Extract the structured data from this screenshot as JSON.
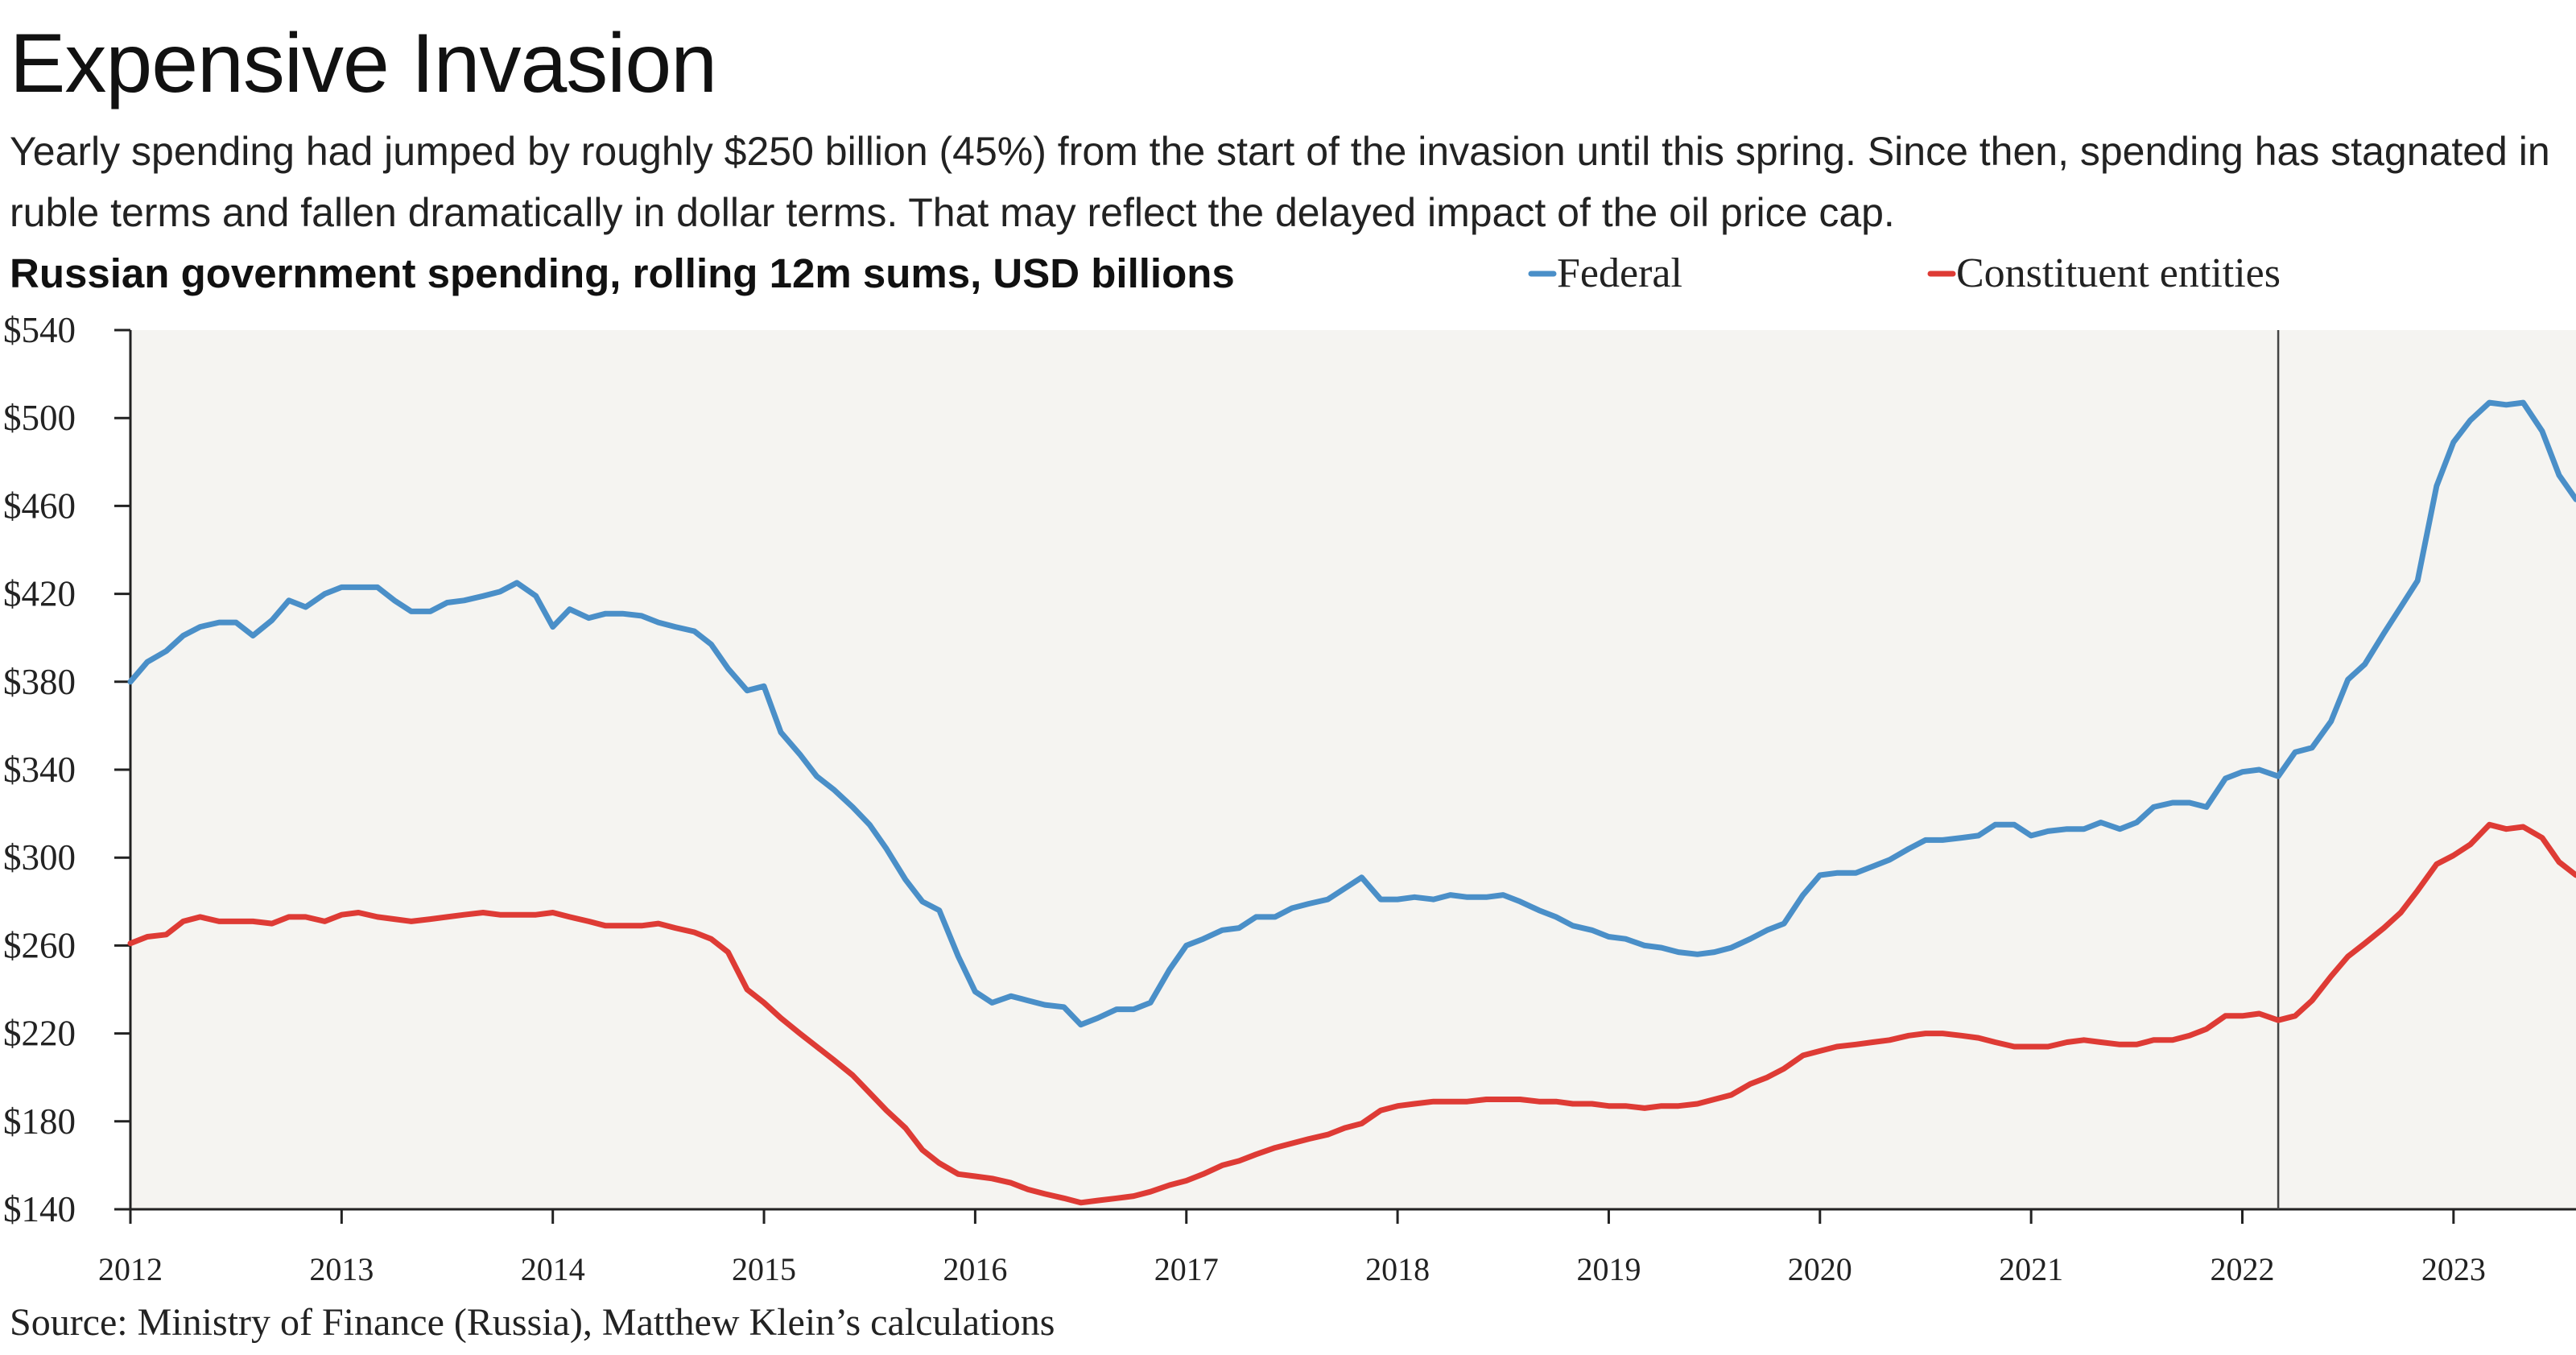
{
  "header": {
    "title": "Expensive Invasion",
    "subtitle": "Yearly spending had jumped by roughly $250 billion (45%) from the start of the invasion until this spring. Since then, spending has stagnated in ruble terms and fallen dramatically in dollar terms. That may reflect the delayed impact of the oil price cap.",
    "chart_title": "Russian government spending, rolling 12m sums, USD billions"
  },
  "footer": {
    "source": "Source: Ministry of Finance (Russia), Matthew Klein’s calculations"
  },
  "colors": {
    "federal": "#4a8fc8",
    "constituent": "#de3b35",
    "plot_background": "#f5f4f1",
    "marker_line": "#444444"
  },
  "chart_data": {
    "type": "line",
    "title": "Russian government spending, rolling 12m sums, USD billions",
    "xlabel": "",
    "ylabel": "",
    "xlim": [
      2012.0,
      2023.58
    ],
    "ylim": [
      140,
      540
    ],
    "y_ticks": [
      140,
      180,
      220,
      260,
      300,
      340,
      380,
      420,
      460,
      500,
      540
    ],
    "y_tick_labels": [
      "$140",
      "$180",
      "$220",
      "$260",
      "$300",
      "$340",
      "$380",
      "$420",
      "$460",
      "$500",
      "$540"
    ],
    "x_ticks": [
      2012,
      2013,
      2014,
      2015,
      2016,
      2017,
      2018,
      2019,
      2020,
      2021,
      2022,
      2023
    ],
    "x_tick_labels": [
      "2012",
      "2013",
      "2014",
      "2015",
      "2016",
      "2017",
      "2018",
      "2019",
      "2020",
      "2021",
      "2022",
      "2023"
    ],
    "grid": false,
    "legend_position": "top-right",
    "annotations": [
      {
        "type": "vertical-line",
        "x": 2022.17
      }
    ],
    "series": [
      {
        "name": "Federal",
        "color": "#4a8fc8",
        "points": [
          [
            2012.0,
            380
          ],
          [
            2012.08,
            389
          ],
          [
            2012.17,
            394
          ],
          [
            2012.25,
            401
          ],
          [
            2012.33,
            405
          ],
          [
            2012.42,
            407
          ],
          [
            2012.5,
            407
          ],
          [
            2012.58,
            401
          ],
          [
            2012.67,
            408
          ],
          [
            2012.75,
            417
          ],
          [
            2012.83,
            414
          ],
          [
            2012.92,
            420
          ],
          [
            2013.0,
            423
          ],
          [
            2013.08,
            423
          ],
          [
            2013.17,
            423
          ],
          [
            2013.25,
            417
          ],
          [
            2013.33,
            412
          ],
          [
            2013.42,
            412
          ],
          [
            2013.5,
            416
          ],
          [
            2013.58,
            417
          ],
          [
            2013.67,
            419
          ],
          [
            2013.75,
            421
          ],
          [
            2013.83,
            425
          ],
          [
            2013.92,
            419
          ],
          [
            2014.0,
            405
          ],
          [
            2014.08,
            413
          ],
          [
            2014.17,
            409
          ],
          [
            2014.25,
            411
          ],
          [
            2014.33,
            411
          ],
          [
            2014.42,
            410
          ],
          [
            2014.5,
            407
          ],
          [
            2014.58,
            405
          ],
          [
            2014.67,
            403
          ],
          [
            2014.75,
            397
          ],
          [
            2014.83,
            386
          ],
          [
            2014.92,
            376
          ],
          [
            2015.0,
            378
          ],
          [
            2015.08,
            357
          ],
          [
            2015.17,
            347
          ],
          [
            2015.25,
            337
          ],
          [
            2015.33,
            331
          ],
          [
            2015.42,
            323
          ],
          [
            2015.5,
            315
          ],
          [
            2015.58,
            304
          ],
          [
            2015.67,
            290
          ],
          [
            2015.75,
            280
          ],
          [
            2015.83,
            276
          ],
          [
            2015.92,
            255
          ],
          [
            2016.0,
            239
          ],
          [
            2016.08,
            234
          ],
          [
            2016.17,
            237
          ],
          [
            2016.25,
            235
          ],
          [
            2016.33,
            233
          ],
          [
            2016.42,
            232
          ],
          [
            2016.5,
            224
          ],
          [
            2016.58,
            227
          ],
          [
            2016.67,
            231
          ],
          [
            2016.75,
            231
          ],
          [
            2016.83,
            234
          ],
          [
            2016.92,
            249
          ],
          [
            2017.0,
            260
          ],
          [
            2017.08,
            263
          ],
          [
            2017.17,
            267
          ],
          [
            2017.25,
            268
          ],
          [
            2017.33,
            273
          ],
          [
            2017.42,
            273
          ],
          [
            2017.5,
            277
          ],
          [
            2017.58,
            279
          ],
          [
            2017.67,
            281
          ],
          [
            2017.75,
            286
          ],
          [
            2017.83,
            291
          ],
          [
            2017.92,
            281
          ],
          [
            2018.0,
            281
          ],
          [
            2018.08,
            282
          ],
          [
            2018.17,
            281
          ],
          [
            2018.25,
            283
          ],
          [
            2018.33,
            282
          ],
          [
            2018.42,
            282
          ],
          [
            2018.5,
            283
          ],
          [
            2018.58,
            280
          ],
          [
            2018.67,
            276
          ],
          [
            2018.75,
            273
          ],
          [
            2018.83,
            269
          ],
          [
            2018.92,
            267
          ],
          [
            2019.0,
            264
          ],
          [
            2019.08,
            263
          ],
          [
            2019.17,
            260
          ],
          [
            2019.25,
            259
          ],
          [
            2019.33,
            257
          ],
          [
            2019.42,
            256
          ],
          [
            2019.5,
            257
          ],
          [
            2019.58,
            259
          ],
          [
            2019.67,
            263
          ],
          [
            2019.75,
            267
          ],
          [
            2019.83,
            270
          ],
          [
            2019.92,
            283
          ],
          [
            2020.0,
            292
          ],
          [
            2020.08,
            293
          ],
          [
            2020.17,
            293
          ],
          [
            2020.25,
            296
          ],
          [
            2020.33,
            299
          ],
          [
            2020.42,
            304
          ],
          [
            2020.5,
            308
          ],
          [
            2020.58,
            308
          ],
          [
            2020.67,
            309
          ],
          [
            2020.75,
            310
          ],
          [
            2020.83,
            315
          ],
          [
            2020.92,
            315
          ],
          [
            2021.0,
            310
          ],
          [
            2021.08,
            312
          ],
          [
            2021.17,
            313
          ],
          [
            2021.25,
            313
          ],
          [
            2021.33,
            316
          ],
          [
            2021.42,
            313
          ],
          [
            2021.5,
            316
          ],
          [
            2021.58,
            323
          ],
          [
            2021.67,
            325
          ],
          [
            2021.75,
            325
          ],
          [
            2021.83,
            323
          ],
          [
            2021.92,
            336
          ],
          [
            2022.0,
            339
          ],
          [
            2022.08,
            340
          ],
          [
            2022.17,
            337
          ],
          [
            2022.25,
            348
          ],
          [
            2022.33,
            350
          ],
          [
            2022.42,
            362
          ],
          [
            2022.5,
            381
          ],
          [
            2022.58,
            388
          ],
          [
            2022.67,
            402
          ],
          [
            2022.75,
            414
          ],
          [
            2022.83,
            426
          ],
          [
            2022.92,
            469
          ],
          [
            2023.0,
            489
          ],
          [
            2023.08,
            499
          ],
          [
            2023.17,
            507
          ],
          [
            2023.25,
            506
          ],
          [
            2023.33,
            507
          ],
          [
            2023.42,
            494
          ],
          [
            2023.5,
            474
          ],
          [
            2023.58,
            463
          ]
        ]
      },
      {
        "name": "Constituent entities",
        "color": "#de3b35",
        "points": [
          [
            2012.0,
            261
          ],
          [
            2012.08,
            264
          ],
          [
            2012.17,
            265
          ],
          [
            2012.25,
            271
          ],
          [
            2012.33,
            273
          ],
          [
            2012.42,
            271
          ],
          [
            2012.5,
            271
          ],
          [
            2012.58,
            271
          ],
          [
            2012.67,
            270
          ],
          [
            2012.75,
            273
          ],
          [
            2012.83,
            273
          ],
          [
            2012.92,
            271
          ],
          [
            2013.0,
            274
          ],
          [
            2013.08,
            275
          ],
          [
            2013.17,
            273
          ],
          [
            2013.25,
            272
          ],
          [
            2013.33,
            271
          ],
          [
            2013.42,
            272
          ],
          [
            2013.5,
            273
          ],
          [
            2013.58,
            274
          ],
          [
            2013.67,
            275
          ],
          [
            2013.75,
            274
          ],
          [
            2013.83,
            274
          ],
          [
            2013.92,
            274
          ],
          [
            2014.0,
            275
          ],
          [
            2014.08,
            273
          ],
          [
            2014.17,
            271
          ],
          [
            2014.25,
            269
          ],
          [
            2014.33,
            269
          ],
          [
            2014.42,
            269
          ],
          [
            2014.5,
            270
          ],
          [
            2014.58,
            268
          ],
          [
            2014.67,
            266
          ],
          [
            2014.75,
            263
          ],
          [
            2014.83,
            257
          ],
          [
            2014.92,
            240
          ],
          [
            2015.0,
            234
          ],
          [
            2015.08,
            227
          ],
          [
            2015.17,
            220
          ],
          [
            2015.25,
            214
          ],
          [
            2015.33,
            208
          ],
          [
            2015.42,
            201
          ],
          [
            2015.5,
            193
          ],
          [
            2015.58,
            185
          ],
          [
            2015.67,
            177
          ],
          [
            2015.75,
            167
          ],
          [
            2015.83,
            161
          ],
          [
            2015.92,
            156
          ],
          [
            2016.0,
            155
          ],
          [
            2016.08,
            154
          ],
          [
            2016.17,
            152
          ],
          [
            2016.25,
            149
          ],
          [
            2016.33,
            147
          ],
          [
            2016.42,
            145
          ],
          [
            2016.5,
            143
          ],
          [
            2016.58,
            144
          ],
          [
            2016.67,
            145
          ],
          [
            2016.75,
            146
          ],
          [
            2016.83,
            148
          ],
          [
            2016.92,
            151
          ],
          [
            2017.0,
            153
          ],
          [
            2017.08,
            156
          ],
          [
            2017.17,
            160
          ],
          [
            2017.25,
            162
          ],
          [
            2017.33,
            165
          ],
          [
            2017.42,
            168
          ],
          [
            2017.5,
            170
          ],
          [
            2017.58,
            172
          ],
          [
            2017.67,
            174
          ],
          [
            2017.75,
            177
          ],
          [
            2017.83,
            179
          ],
          [
            2017.92,
            185
          ],
          [
            2018.0,
            187
          ],
          [
            2018.08,
            188
          ],
          [
            2018.17,
            189
          ],
          [
            2018.25,
            189
          ],
          [
            2018.33,
            189
          ],
          [
            2018.42,
            190
          ],
          [
            2018.5,
            190
          ],
          [
            2018.58,
            190
          ],
          [
            2018.67,
            189
          ],
          [
            2018.75,
            189
          ],
          [
            2018.83,
            188
          ],
          [
            2018.92,
            188
          ],
          [
            2019.0,
            187
          ],
          [
            2019.08,
            187
          ],
          [
            2019.17,
            186
          ],
          [
            2019.25,
            187
          ],
          [
            2019.33,
            187
          ],
          [
            2019.42,
            188
          ],
          [
            2019.5,
            190
          ],
          [
            2019.58,
            192
          ],
          [
            2019.67,
            197
          ],
          [
            2019.75,
            200
          ],
          [
            2019.83,
            204
          ],
          [
            2019.92,
            210
          ],
          [
            2020.0,
            212
          ],
          [
            2020.08,
            214
          ],
          [
            2020.17,
            215
          ],
          [
            2020.25,
            216
          ],
          [
            2020.33,
            217
          ],
          [
            2020.42,
            219
          ],
          [
            2020.5,
            220
          ],
          [
            2020.58,
            220
          ],
          [
            2020.67,
            219
          ],
          [
            2020.75,
            218
          ],
          [
            2020.83,
            216
          ],
          [
            2020.92,
            214
          ],
          [
            2021.0,
            214
          ],
          [
            2021.08,
            214
          ],
          [
            2021.17,
            216
          ],
          [
            2021.25,
            217
          ],
          [
            2021.33,
            216
          ],
          [
            2021.42,
            215
          ],
          [
            2021.5,
            215
          ],
          [
            2021.58,
            217
          ],
          [
            2021.67,
            217
          ],
          [
            2021.75,
            219
          ],
          [
            2021.83,
            222
          ],
          [
            2021.92,
            228
          ],
          [
            2022.0,
            228
          ],
          [
            2022.08,
            229
          ],
          [
            2022.17,
            226
          ],
          [
            2022.25,
            228
          ],
          [
            2022.33,
            235
          ],
          [
            2022.42,
            246
          ],
          [
            2022.5,
            255
          ],
          [
            2022.58,
            261
          ],
          [
            2022.67,
            268
          ],
          [
            2022.75,
            275
          ],
          [
            2022.83,
            285
          ],
          [
            2022.92,
            297
          ],
          [
            2023.0,
            301
          ],
          [
            2023.08,
            306
          ],
          [
            2023.17,
            315
          ],
          [
            2023.25,
            313
          ],
          [
            2023.33,
            314
          ],
          [
            2023.42,
            309
          ],
          [
            2023.5,
            298
          ],
          [
            2023.58,
            292
          ]
        ]
      }
    ]
  }
}
